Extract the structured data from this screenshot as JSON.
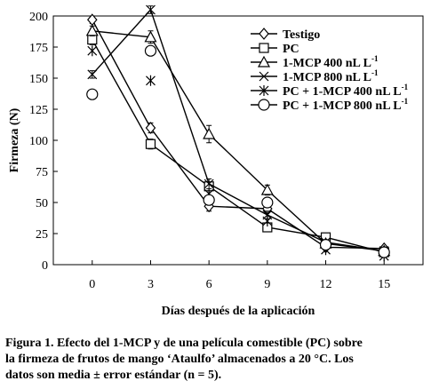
{
  "chart_data": {
    "type": "line",
    "xlabel": "Días después de la aplicación",
    "ylabel": "Firmeza (N)",
    "xlim": [
      -2,
      17
    ],
    "ylim": [
      0,
      200
    ],
    "xticks": [
      0,
      3,
      6,
      9,
      12,
      15
    ],
    "yticks": [
      0,
      25,
      50,
      75,
      100,
      125,
      150,
      175,
      200
    ],
    "legend_position": "top-right",
    "series": [
      {
        "name": "Testigo",
        "marker": "diamond",
        "points": [
          [
            0,
            197
          ],
          [
            3,
            110
          ],
          [
            6,
            47
          ],
          [
            9,
            45
          ],
          [
            12,
            14
          ],
          [
            15,
            13
          ]
        ],
        "err": [
          3,
          4,
          4,
          3,
          2,
          2
        ]
      },
      {
        "name": "PC",
        "marker": "square",
        "points": [
          [
            0,
            181
          ],
          [
            3,
            97
          ],
          [
            6,
            63
          ],
          [
            9,
            30
          ],
          [
            12,
            22
          ],
          [
            15,
            10
          ]
        ],
        "err": [
          4,
          4,
          3,
          3,
          2,
          2
        ]
      },
      {
        "name": "1-MCP 400 nL L",
        "sup": "-1",
        "marker": "triangle",
        "points": [
          [
            0,
            188
          ],
          [
            3,
            183
          ],
          [
            6,
            105
          ],
          [
            9,
            60
          ],
          [
            12,
            17
          ],
          [
            15,
            11
          ]
        ],
        "err": [
          4,
          5,
          7,
          4,
          2,
          2
        ]
      },
      {
        "name": "1-MCP 800 nL L",
        "sup": "-1",
        "marker": "x",
        "points": [
          [
            0,
            153
          ],
          [
            3,
            205
          ],
          [
            6,
            65
          ],
          [
            9,
            40
          ],
          [
            12,
            18
          ],
          [
            15,
            11
          ]
        ],
        "err": [
          3,
          3,
          4,
          3,
          2,
          2
        ]
      },
      {
        "name": "PC + 1-MCP 400 nL L",
        "sup": "-1",
        "marker": "star",
        "points": [
          [
            0,
            172
          ],
          [
            3,
            148
          ],
          [
            6,
            57
          ],
          [
            9,
            35
          ],
          [
            12,
            12
          ],
          [
            15,
            7
          ]
        ],
        "err": [
          0,
          0,
          0,
          0,
          0,
          0
        ]
      },
      {
        "name": "PC + 1-MCP 800 nL L",
        "sup": "-1",
        "marker": "circle",
        "points": [
          [
            0,
            137
          ],
          [
            3,
            172
          ],
          [
            6,
            52
          ],
          [
            9,
            50
          ],
          [
            12,
            16
          ],
          [
            15,
            10
          ]
        ],
        "err": [
          0,
          0,
          0,
          0,
          0,
          0
        ]
      }
    ]
  },
  "caption": {
    "line1": "Figura 1. Efecto del 1-MCP y de una película comestible (PC) sobre",
    "line2": "la firmeza de frutos de mango ‘Ataulfo’ almacenados a 20 °C. Los",
    "line3": "datos son media ± error estándar (n = 5)."
  }
}
